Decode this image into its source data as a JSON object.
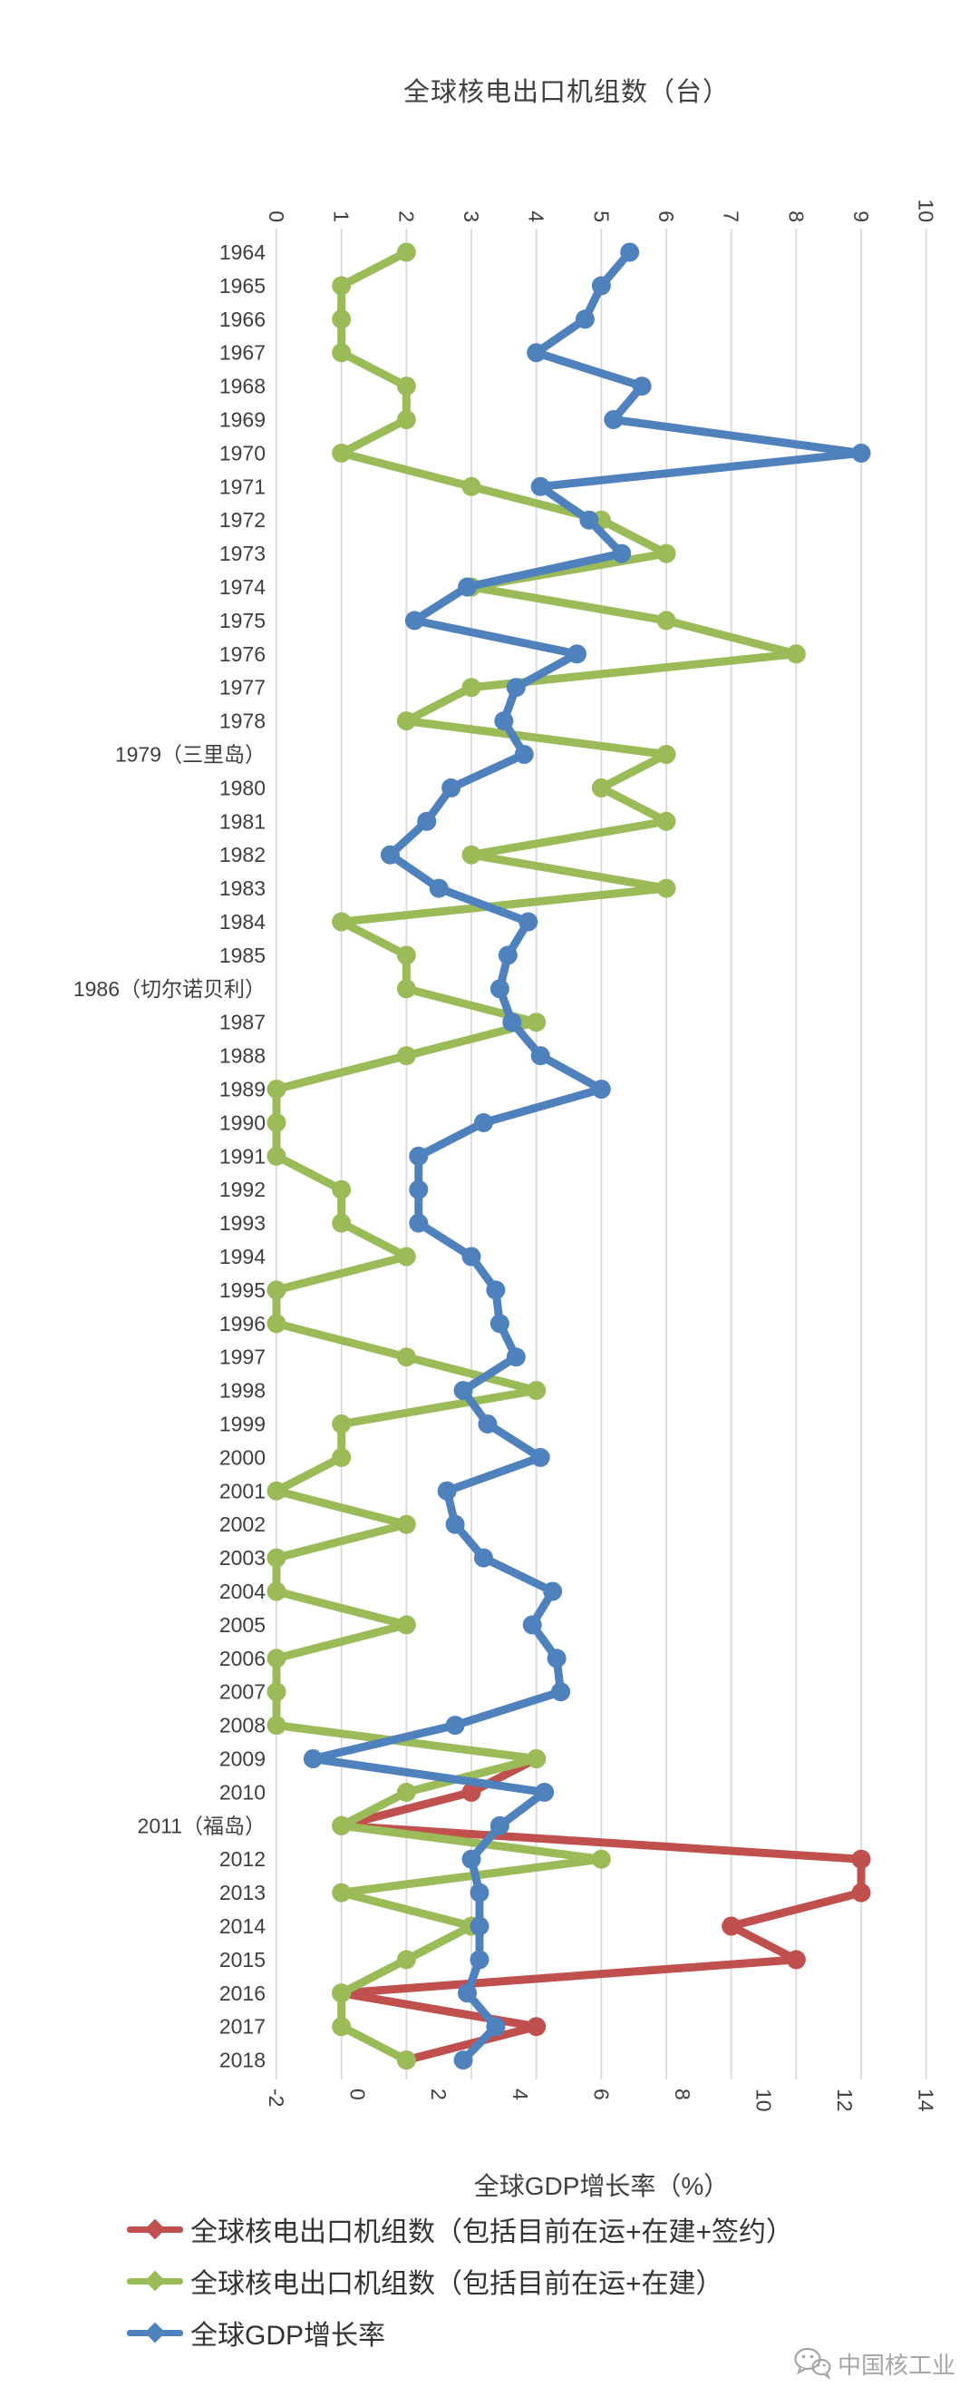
{
  "page": {
    "background": "#ffffff",
    "watermark_text": "中国核工业"
  },
  "chart": {
    "title": "全球核电出口机组数（台）",
    "bottom_axis_title": "全球GDP增长率（%）",
    "grid_color": "#d9d9d9",
    "text_color": "#3f3f3f"
  },
  "chart_data": {
    "type": "line",
    "orientation": "vertical-category",
    "grid": true,
    "legend_position": "bottom-left",
    "categories": [
      "1964",
      "1965",
      "1966",
      "1967",
      "1968",
      "1969",
      "1970",
      "1971",
      "1972",
      "1973",
      "1974",
      "1975",
      "1976",
      "1977",
      "1978",
      "1979（三里岛）",
      "1980",
      "1981",
      "1982",
      "1983",
      "1984",
      "1985",
      "1986（切尔诺贝利）",
      "1987",
      "1988",
      "1989",
      "1990",
      "1991",
      "1992",
      "1993",
      "1994",
      "1995",
      "1996",
      "1997",
      "1998",
      "1999",
      "2000",
      "2001",
      "2002",
      "2003",
      "2004",
      "2005",
      "2006",
      "2007",
      "2008",
      "2009",
      "2010",
      "2011（福岛）",
      "2012",
      "2013",
      "2014",
      "2015",
      "2016",
      "2017",
      "2018"
    ],
    "top_axis": {
      "title": "全球核电出口机组数（台）",
      "min": 0,
      "max": 10,
      "tick_step": 1
    },
    "bottom_axis": {
      "title": "全球GDP增长率（%）",
      "min": -2,
      "max": 14,
      "tick_step": 2
    },
    "series": [
      {
        "name": "全球核电出口机组数（包括目前在运+在建+签约）",
        "color": "#c0504d",
        "axis": "top",
        "values": [
          null,
          null,
          null,
          null,
          null,
          null,
          null,
          null,
          null,
          null,
          null,
          null,
          null,
          null,
          null,
          null,
          null,
          null,
          null,
          null,
          null,
          null,
          null,
          null,
          null,
          null,
          null,
          null,
          null,
          null,
          null,
          null,
          null,
          null,
          null,
          null,
          null,
          null,
          null,
          null,
          null,
          null,
          null,
          null,
          null,
          4,
          3,
          1,
          9,
          9,
          7,
          8,
          1,
          4,
          2
        ]
      },
      {
        "name": "全球核电出口机组数（包括目前在运+在建）",
        "color": "#9bbb59",
        "axis": "top",
        "values": [
          2,
          1,
          1,
          1,
          2,
          2,
          1,
          3,
          5,
          6,
          3,
          6,
          8,
          3,
          2,
          6,
          5,
          6,
          3,
          6,
          1,
          2,
          2,
          4,
          2,
          0,
          0,
          0,
          1,
          1,
          2,
          0,
          0,
          2,
          4,
          1,
          1,
          0,
          2,
          0,
          0,
          2,
          0,
          0,
          0,
          4,
          2,
          1,
          5,
          1,
          3,
          2,
          1,
          1,
          2
        ]
      },
      {
        "name": "全球GDP增长率",
        "color": "#4f81bd",
        "axis": "bottom",
        "values": [
          6.7,
          6.0,
          5.6,
          4.4,
          7.0,
          6.3,
          12.4,
          4.5,
          5.7,
          6.5,
          2.7,
          1.4,
          5.4,
          3.9,
          3.6,
          4.1,
          2.3,
          1.7,
          0.8,
          2.0,
          4.2,
          3.7,
          3.5,
          3.8,
          4.5,
          6.0,
          3.1,
          1.5,
          1.5,
          1.5,
          2.8,
          3.4,
          3.5,
          3.9,
          2.6,
          3.2,
          4.5,
          2.2,
          2.4,
          3.1,
          4.8,
          4.3,
          4.9,
          5.0,
          2.4,
          -1.1,
          4.6,
          3.5,
          2.8,
          3.0,
          3.0,
          3.0,
          2.7,
          3.4,
          2.6
        ]
      }
    ]
  }
}
